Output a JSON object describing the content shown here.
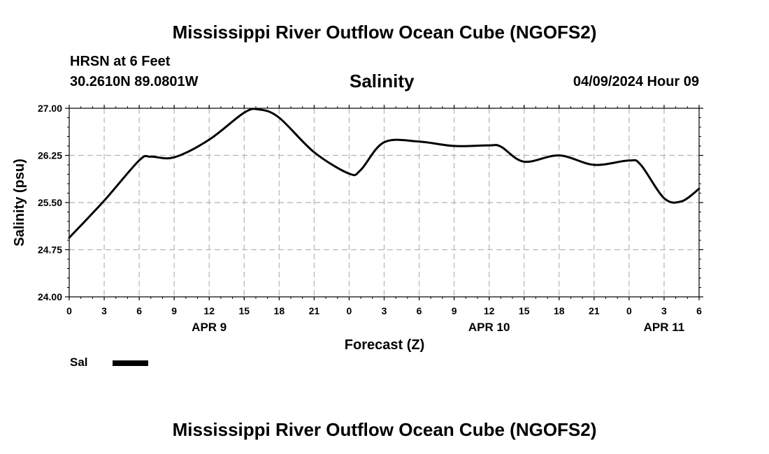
{
  "header": {
    "title_top": "Mississippi River Outflow Ocean Cube (NGOFS2)",
    "station": "HRSN at 6 Feet",
    "coords": "30.2610N  89.0801W",
    "variable": "Salinity",
    "datetime": "04/09/2024 Hour 09",
    "title_bottom": "Mississippi River Outflow Ocean Cube (NGOFS2)"
  },
  "legend": {
    "label": "Sal",
    "color": "#000000"
  },
  "colors": {
    "line": "#000000",
    "grid": "#b4b4b4",
    "background": "#ffffff"
  },
  "chart_data": {
    "type": "line",
    "title": "Salinity",
    "xlabel": "Forecast (Z)",
    "ylabel": "Salinity (psu)",
    "xlim": [
      0,
      54
    ],
    "ylim": [
      24.0,
      27.0
    ],
    "x_unit": "hours since 2024-04-09 00Z",
    "x_ticks": [
      0,
      3,
      6,
      9,
      12,
      15,
      18,
      21,
      24,
      27,
      30,
      33,
      36,
      39,
      42,
      45,
      48,
      51,
      54
    ],
    "x_tick_labels": [
      "0",
      "3",
      "6",
      "9",
      "12",
      "15",
      "18",
      "21",
      "0",
      "3",
      "6",
      "9",
      "12",
      "15",
      "18",
      "21",
      "0",
      "3",
      "6"
    ],
    "y_ticks": [
      24.0,
      24.75,
      25.5,
      26.25,
      27.0
    ],
    "y_tick_labels": [
      "24.00",
      "24.75",
      "25.50",
      "26.25",
      "27.00"
    ],
    "date_labels": [
      {
        "x": 12,
        "label": "APR 9"
      },
      {
        "x": 36,
        "label": "APR 10"
      },
      {
        "x": 51,
        "label": "APR 11"
      }
    ],
    "series": [
      {
        "name": "Sal",
        "x": [
          0,
          3,
          6,
          7,
          9,
          12,
          15,
          16.3,
          18,
          21,
          24,
          25,
          27,
          30,
          33,
          36,
          37,
          39,
          42,
          45,
          48,
          49,
          51,
          52.5,
          54
        ],
        "y": [
          24.94,
          25.53,
          26.17,
          26.23,
          26.22,
          26.5,
          26.93,
          26.98,
          26.85,
          26.3,
          25.96,
          26.02,
          26.46,
          26.47,
          26.4,
          26.41,
          26.39,
          26.15,
          26.25,
          26.1,
          26.17,
          26.1,
          25.57,
          25.52,
          25.72
        ]
      }
    ]
  }
}
